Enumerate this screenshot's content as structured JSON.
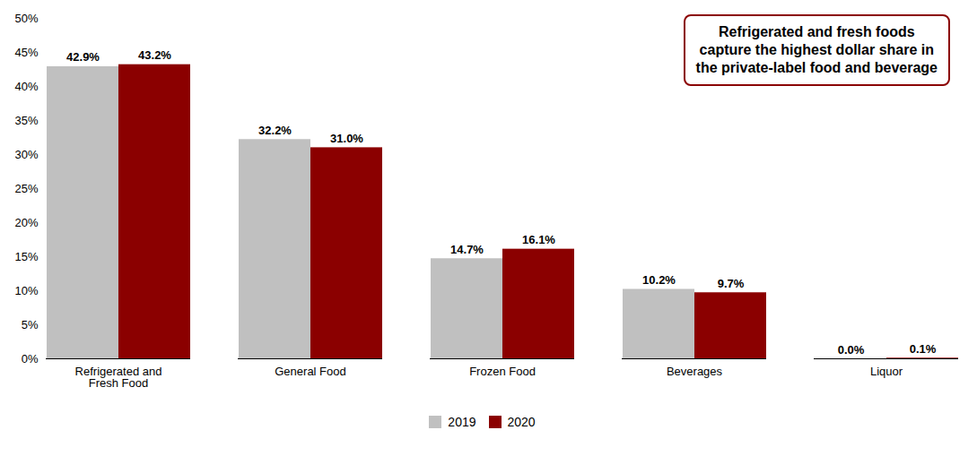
{
  "chart_data": {
    "type": "bar",
    "categories": [
      "Refrigerated and\nFresh Food",
      "General Food",
      "Frozen Food",
      "Beverages",
      "Liquor"
    ],
    "series": [
      {
        "name": "2019",
        "color": "#c0c0c0",
        "values": [
          42.9,
          32.2,
          14.7,
          10.2,
          0.0
        ],
        "value_labels": [
          "42.9%",
          "32.2%",
          "14.7%",
          "10.2%",
          "0.0%"
        ]
      },
      {
        "name": "2020",
        "color": "#8b0000",
        "values": [
          43.2,
          31.0,
          16.1,
          9.7,
          0.1
        ],
        "value_labels": [
          "43.2%",
          "31.0%",
          "16.1%",
          "9.7%",
          "0.1%"
        ]
      }
    ],
    "ylim": [
      0,
      50
    ],
    "yticks": [
      {
        "value": 0,
        "label": "0%"
      },
      {
        "value": 5,
        "label": "5%"
      },
      {
        "value": 10,
        "label": "10%"
      },
      {
        "value": 15,
        "label": "15%"
      },
      {
        "value": 20,
        "label": "20%"
      },
      {
        "value": 25,
        "label": "25%"
      },
      {
        "value": 30,
        "label": "30%"
      },
      {
        "value": 35,
        "label": "35%"
      },
      {
        "value": 40,
        "label": "40%"
      },
      {
        "value": 45,
        "label": "45%"
      },
      {
        "value": 50,
        "label": "50%"
      }
    ],
    "annotation": "Refrigerated and fresh foods\ncapture the highest dollar share in\nthe private-label food and beverage",
    "annotation_color": "#8b0000",
    "data_labels": true,
    "legend": "bottom",
    "grid": false
  }
}
